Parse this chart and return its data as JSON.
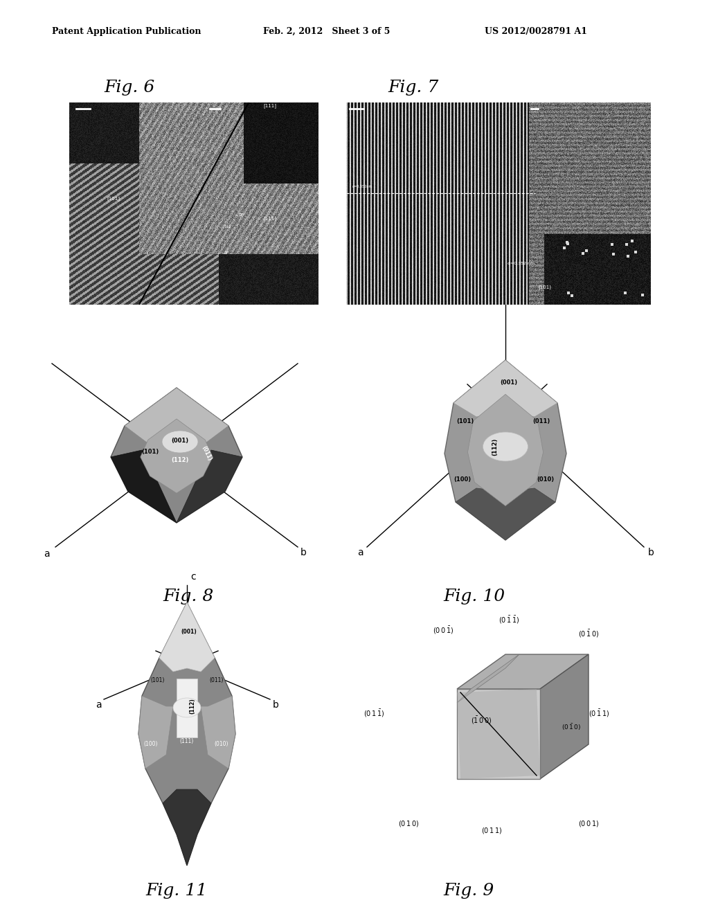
{
  "header_left": "Patent Application Publication",
  "header_middle": "Feb. 2, 2012   Sheet 3 of 5",
  "header_right": "US 2012/0028791 A1",
  "fig6_label": "Fig. 6",
  "fig7_label": "Fig. 7",
  "fig8_label": "Fig. 8",
  "fig9_label": "Fig. 9",
  "fig10_label": "Fig. 10",
  "fig11_label": "Fig. 11",
  "background_color": "#ffffff",
  "header_fontsize": 9,
  "fig_label_fontsize": 18,
  "axis_label_fontsize": 10,
  "crystal_label_fontsize": 6
}
